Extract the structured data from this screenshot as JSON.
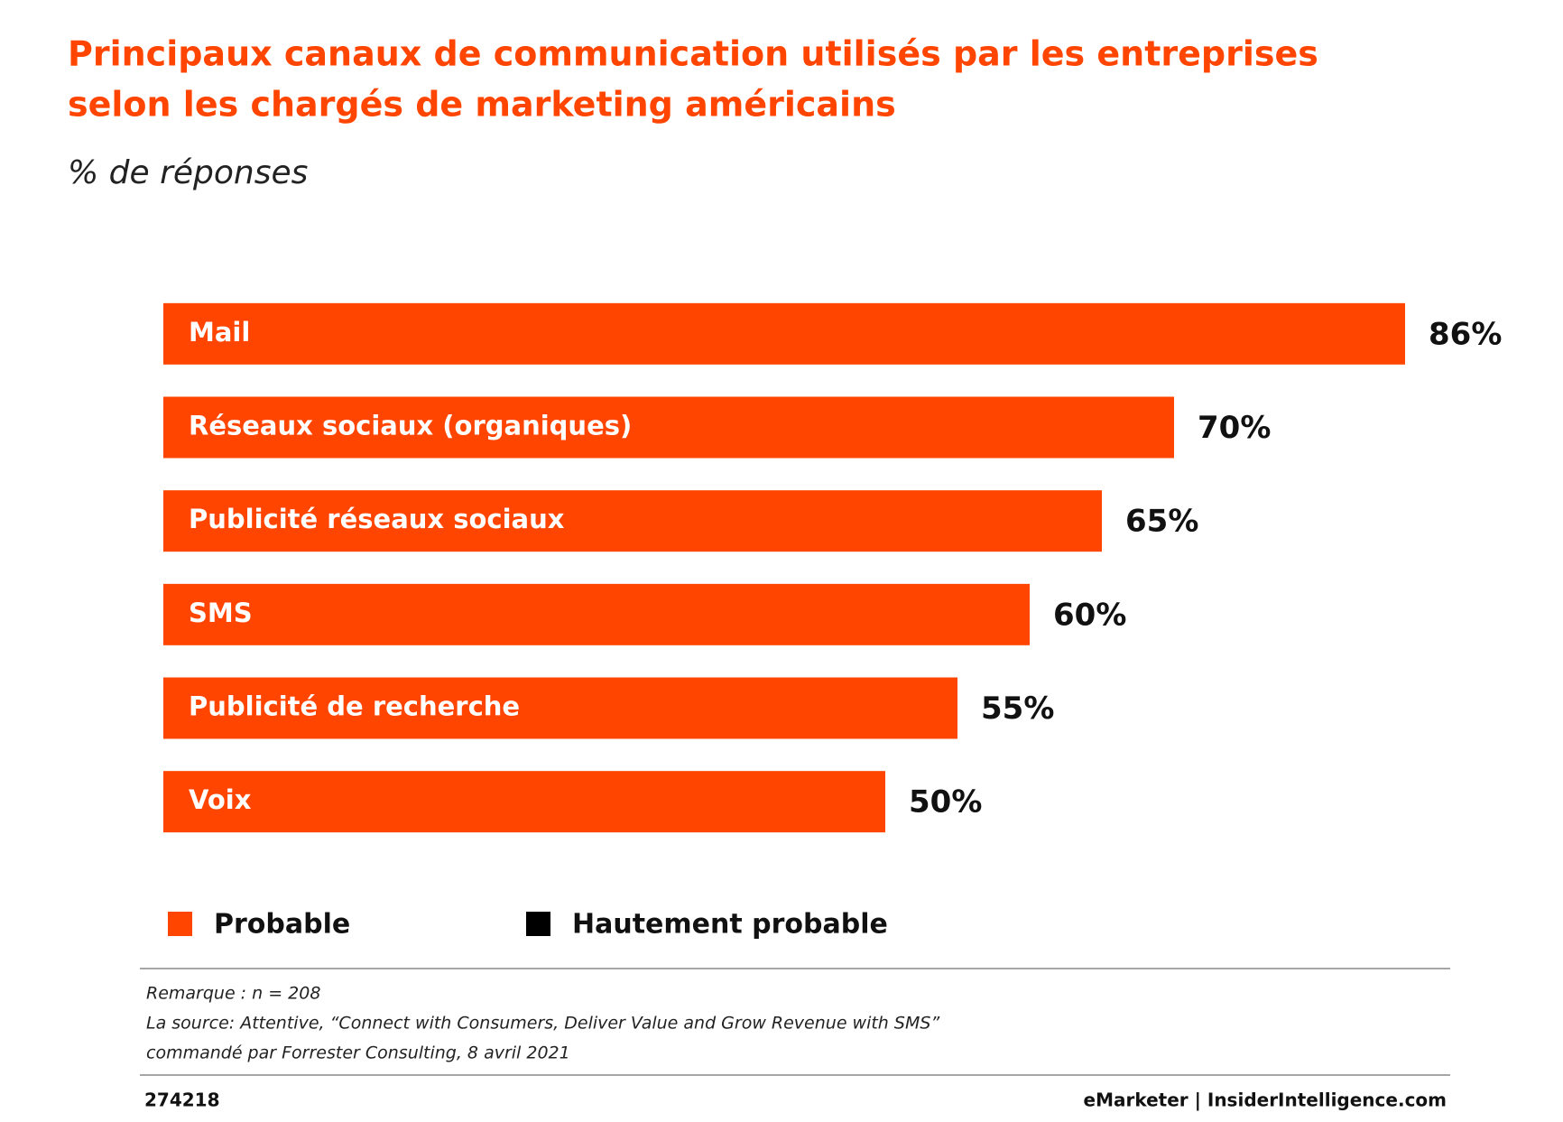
{
  "chart_data": {
    "type": "bar",
    "orientation": "horizontal",
    "title": [
      "Principaux canaux de communication utilisés par les entreprises",
      "selon les chargés de marketing américains"
    ],
    "subtitle": "% de réponses",
    "categories": [
      "Mail",
      "Réseaux sociaux (organiques)",
      "Publicité réseaux sociaux",
      "SMS",
      "Publicité de recherche",
      "Voix"
    ],
    "series": [
      {
        "name": "Probable",
        "color": "#ff4500",
        "values": [
          86,
          70,
          65,
          60,
          55,
          50
        ],
        "value_labels": [
          "86%",
          "70%",
          "65%",
          "60%",
          "55%",
          "50%"
        ]
      },
      {
        "name": "Hautement probable",
        "color": "#000000",
        "values": [
          null,
          null,
          null,
          null,
          null,
          null
        ]
      }
    ],
    "xlim": [
      0,
      90
    ],
    "notes": [
      "Remarque : n = 208",
      "La source:  Attentive, “Connect with Consumers, Deliver Value and Grow Revenue with SMS”",
      "commandé par Forrester Consulting, 8 avril 2021"
    ],
    "chart_id": "274218",
    "credit": "eMarketer | InsiderIntelligence.com"
  }
}
